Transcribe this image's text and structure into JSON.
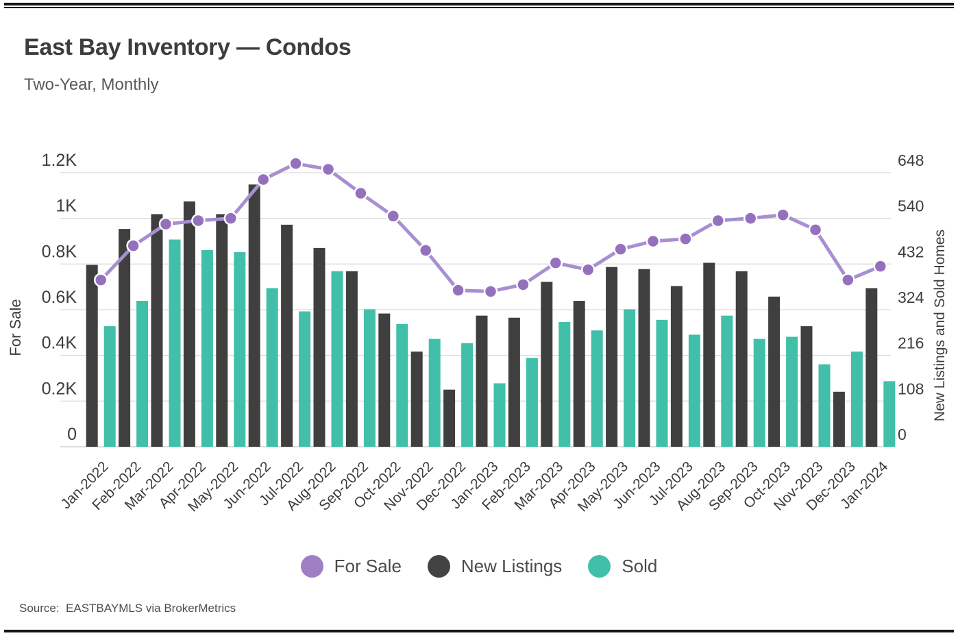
{
  "page": {
    "title": "East Bay Inventory — Condos",
    "subtitle": "Two-Year, Monthly",
    "source": "Source:  EASTBAYMLS via BrokerMetrics"
  },
  "legend": {
    "items": [
      {
        "label": "For Sale",
        "color": "#9f7fc4"
      },
      {
        "label": "New Listings",
        "color": "#434343"
      },
      {
        "label": "Sold",
        "color": "#41bfa8"
      }
    ]
  },
  "chart_data": {
    "type": "bar+line combo",
    "title": "East Bay Inventory — Condos",
    "subtitle": "Two-Year, Monthly",
    "categories": [
      "Jan-2022",
      "Feb-2022",
      "Mar-2022",
      "Apr-2022",
      "May-2022",
      "Jun-2022",
      "Jul-2022",
      "Aug-2022",
      "Sep-2022",
      "Oct-2022",
      "Nov-2022",
      "Dec-2022",
      "Jan-2023",
      "Feb-2023",
      "Mar-2023",
      "Apr-2023",
      "May-2023",
      "Jun-2023",
      "Jul-2023",
      "Aug-2023",
      "Sep-2023",
      "Oct-2023",
      "Nov-2023",
      "Dec-2023",
      "Jan-2024"
    ],
    "series": [
      {
        "name": "For Sale",
        "type": "line",
        "axis": "left",
        "color": "#a78fd2",
        "marker_color": "#9571bd",
        "values": [
          730,
          880,
          975,
          990,
          1000,
          1170,
          1240,
          1215,
          1110,
          1010,
          860,
          685,
          680,
          710,
          805,
          775,
          865,
          900,
          910,
          990,
          1000,
          1015,
          950,
          730,
          790
        ]
      },
      {
        "name": "New Listings",
        "type": "bar",
        "axis": "right",
        "color": "#3f3f3f",
        "values": [
          430,
          515,
          550,
          580,
          550,
          620,
          525,
          470,
          415,
          315,
          225,
          135,
          310,
          305,
          390,
          345,
          425,
          420,
          380,
          435,
          415,
          355,
          285,
          130,
          375
        ]
      },
      {
        "name": "Sold",
        "type": "bar",
        "axis": "right",
        "color": "#41bfa8",
        "values": [
          285,
          345,
          490,
          465,
          460,
          375,
          320,
          415,
          325,
          290,
          255,
          245,
          150,
          210,
          295,
          275,
          325,
          300,
          265,
          310,
          255,
          260,
          195,
          225,
          155
        ]
      }
    ],
    "left_axis": {
      "label": "For Sale",
      "min": 0,
      "max": 1200,
      "tick_step": 200,
      "ticks": [
        "0",
        "0.2K",
        "0.4K",
        "0.6K",
        "0.8K",
        "1K",
        "1.2K"
      ]
    },
    "right_axis": {
      "label": "New Listings and Sold Homes",
      "min": 0,
      "max": 648,
      "tick_step": 108,
      "ticks": [
        "0",
        "108",
        "216",
        "324",
        "432",
        "540",
        "648"
      ]
    },
    "grid": true,
    "legend_position": "bottom",
    "x_tick_rotation_deg": 45
  }
}
